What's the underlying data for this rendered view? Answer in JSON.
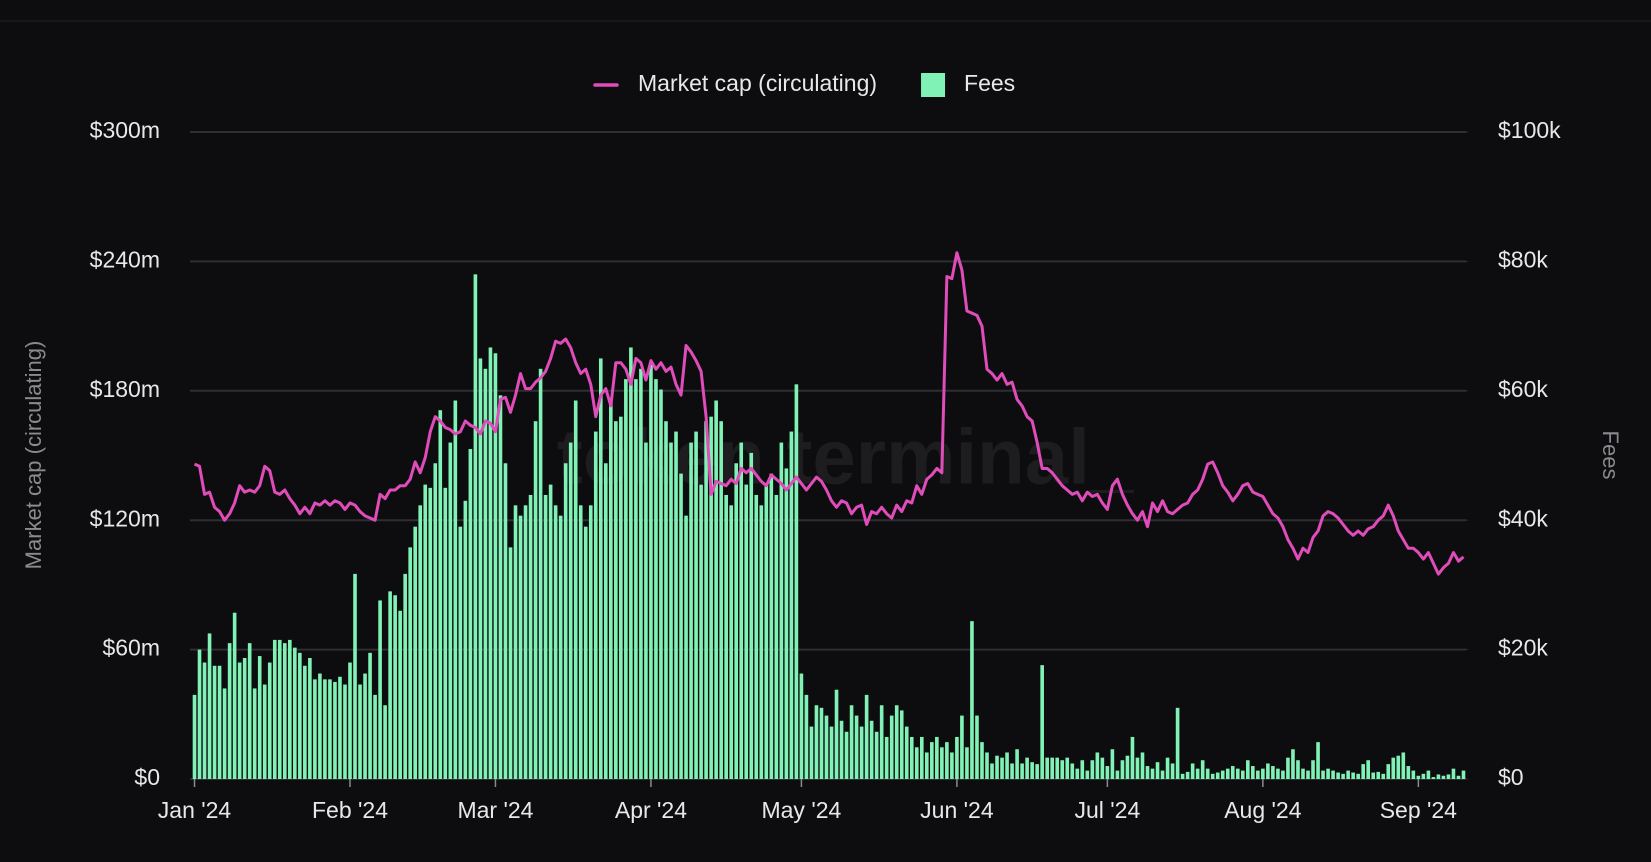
{
  "chart_data": {
    "type": "combo",
    "watermark": "token terminal_",
    "ylabel": "Market cap (circulating)",
    "y2label": "Fees",
    "grid": true,
    "ylim": [
      0,
      300
    ],
    "yticks": [
      {
        "value": 0,
        "label": "$0"
      },
      {
        "value": 60,
        "label": "$60m"
      },
      {
        "value": 120,
        "label": "$120m"
      },
      {
        "value": 180,
        "label": "$180m"
      },
      {
        "value": 240,
        "label": "$240m"
      },
      {
        "value": 300,
        "label": "$300m"
      }
    ],
    "y2lim": [
      0,
      100
    ],
    "y2ticks": [
      {
        "value": 0,
        "label": "$0"
      },
      {
        "value": 20,
        "label": "$20k"
      },
      {
        "value": 40,
        "label": "$40k"
      },
      {
        "value": 60,
        "label": "$60k"
      },
      {
        "value": 80,
        "label": "$80k"
      },
      {
        "value": 100,
        "label": "$100k"
      }
    ],
    "categories": [
      "Jan '24",
      null,
      null,
      null,
      null,
      null,
      null,
      null,
      null,
      null,
      null,
      null,
      null,
      null,
      null,
      null,
      null,
      null,
      null,
      null,
      null,
      null,
      null,
      null,
      null,
      null,
      null,
      null,
      null,
      null,
      null,
      "Feb '24",
      null,
      null,
      null,
      null,
      null,
      null,
      null,
      null,
      null,
      null,
      null,
      null,
      null,
      null,
      null,
      null,
      null,
      null,
      null,
      null,
      null,
      null,
      null,
      null,
      null,
      null,
      null,
      null,
      "Mar '24",
      null,
      null,
      null,
      null,
      null,
      null,
      null,
      null,
      null,
      null,
      null,
      null,
      null,
      null,
      null,
      null,
      null,
      null,
      null,
      null,
      null,
      null,
      null,
      null,
      null,
      null,
      null,
      null,
      null,
      null,
      "Apr '24",
      null,
      null,
      null,
      null,
      null,
      null,
      null,
      null,
      null,
      null,
      null,
      null,
      null,
      null,
      null,
      null,
      null,
      null,
      null,
      null,
      null,
      null,
      null,
      null,
      null,
      null,
      null,
      null,
      null,
      "May '24",
      null,
      null,
      null,
      null,
      null,
      null,
      null,
      null,
      null,
      null,
      null,
      null,
      null,
      null,
      null,
      null,
      null,
      null,
      null,
      null,
      null,
      null,
      null,
      null,
      null,
      null,
      null,
      null,
      null,
      null,
      "Jun '24",
      null,
      null,
      null,
      null,
      null,
      null,
      null,
      null,
      null,
      null,
      null,
      null,
      null,
      null,
      null,
      null,
      null,
      null,
      null,
      null,
      null,
      null,
      null,
      null,
      null,
      null,
      null,
      null,
      null,
      "Jul '24",
      null,
      null,
      null,
      null,
      null,
      null,
      null,
      null,
      null,
      null,
      null,
      null,
      null,
      null,
      null,
      null,
      null,
      null,
      null,
      null,
      null,
      null,
      null,
      null,
      null,
      null,
      null,
      null,
      null,
      null,
      "Aug '24",
      null,
      null,
      null,
      null,
      null,
      null,
      null,
      null,
      null,
      null,
      null,
      null,
      null,
      null,
      null,
      null,
      null,
      null,
      null,
      null,
      null,
      null,
      null,
      null,
      null,
      null,
      null,
      null,
      null,
      null,
      "Sep '24",
      null,
      null,
      null,
      null,
      null,
      null,
      null,
      null,
      null
    ],
    "series": [
      {
        "name": "Market cap (circulating)",
        "type": "line",
        "color": "#e04cb9",
        "axis": "y",
        "values": [
          146,
          145,
          132,
          133,
          126,
          124,
          120,
          123,
          128,
          136,
          133,
          134,
          133,
          136,
          145,
          143,
          133,
          132,
          134,
          130,
          127,
          123,
          126,
          123,
          128,
          127,
          129,
          127,
          129,
          128,
          125,
          128,
          127,
          124,
          122,
          121,
          120,
          132,
          130,
          134,
          134,
          136,
          136,
          139,
          147,
          142,
          149,
          161,
          168,
          166,
          163,
          162,
          160,
          161,
          166,
          164,
          163,
          160,
          166,
          165,
          161,
          176,
          177,
          170,
          178,
          188,
          181,
          181,
          184,
          186,
          189,
          195,
          203,
          202,
          204,
          200,
          193,
          188,
          190,
          183,
          168,
          178,
          181,
          173,
          193,
          193,
          190,
          183,
          195,
          193,
          185,
          194,
          190,
          193,
          189,
          191,
          183,
          178,
          201,
          198,
          194,
          189,
          168,
          132,
          138,
          137,
          136,
          139,
          137,
          144,
          142,
          144,
          141,
          138,
          136,
          141,
          139,
          137,
          134,
          137,
          140,
          137,
          134,
          137,
          140,
          138,
          134,
          129,
          126,
          129,
          128,
          123,
          126,
          127,
          118,
          124,
          123,
          126,
          123,
          121,
          127,
          124,
          129,
          128,
          136,
          132,
          139,
          141,
          144,
          142,
          233,
          232,
          244,
          236,
          217,
          216,
          215,
          210,
          190,
          188,
          185,
          188,
          183,
          184,
          176,
          173,
          168,
          166,
          156,
          144,
          144,
          142,
          139,
          136,
          134,
          132,
          133,
          129,
          133,
          131,
          132,
          128,
          125,
          136,
          139,
          132,
          127,
          123,
          120,
          124,
          117,
          128,
          124,
          129,
          124,
          123,
          125,
          127,
          128,
          132,
          134,
          139,
          146,
          147,
          142,
          136,
          133,
          129,
          132,
          136,
          137,
          133,
          132,
          131,
          127,
          123,
          121,
          117,
          111,
          107,
          102,
          107,
          105,
          112,
          115,
          122,
          124,
          123,
          121,
          118,
          115,
          113,
          115,
          113,
          116,
          117,
          120,
          122,
          127,
          122,
          115,
          111,
          107,
          107,
          105,
          102,
          105,
          100,
          95,
          98,
          100,
          105,
          101,
          103
        ]
      },
      {
        "name": "Fees",
        "type": "bar",
        "color": "#80f2b6",
        "axis": "y2",
        "values": [
          13,
          20,
          18,
          22.5,
          17.5,
          17.5,
          14,
          21,
          25.7,
          18,
          18.7,
          21,
          14,
          19,
          14.6,
          18,
          21.5,
          21.5,
          21,
          21.5,
          20.3,
          19.5,
          17.5,
          18.7,
          15.4,
          16.3,
          15.4,
          15.4,
          15,
          15.8,
          14.6,
          18,
          31.7,
          14.6,
          16.3,
          19.5,
          13,
          27.6,
          11.4,
          29,
          28.4,
          26,
          31.7,
          35.8,
          39,
          42.3,
          45.5,
          45,
          48.8,
          57,
          45,
          52,
          58.5,
          39,
          43,
          51,
          78,
          65,
          63.4,
          66.7,
          65.8,
          59.3,
          48.8,
          35.8,
          42.3,
          40.7,
          42.3,
          43.9,
          55.3,
          63.4,
          43.9,
          45.5,
          42.3,
          40.7,
          48.8,
          52,
          58.5,
          42.3,
          39,
          42.3,
          53.7,
          65,
          48.8,
          58.5,
          55.3,
          56,
          61.8,
          66.7,
          61.8,
          63.4,
          52,
          64.2,
          61.8,
          60.2,
          55.3,
          52,
          53.7,
          47.2,
          40.7,
          52,
          53.7,
          45.5,
          55.3,
          56,
          58.5,
          55.3,
          43.9,
          42.3,
          48.8,
          52,
          45.5,
          50.4,
          43.9,
          42.3,
          45.5,
          47.2,
          43.9,
          52,
          48,
          53.7,
          61,
          16.3,
          13,
          8.1,
          11.4,
          11,
          9.8,
          8.1,
          13.8,
          9,
          7.3,
          11.4,
          9.8,
          8.1,
          13,
          9,
          7.3,
          11.4,
          6.5,
          9.8,
          11.4,
          10.6,
          8.1,
          6.5,
          4.9,
          6.5,
          4.1,
          5.7,
          6.5,
          4.9,
          5.7,
          4.1,
          6.5,
          9.8,
          4.9,
          24.4,
          9.8,
          5.7,
          4.1,
          2.4,
          3.6,
          3.3,
          4.1,
          2.4,
          4.6,
          2.4,
          3.3,
          2.6,
          2.3,
          17.6,
          3.3,
          3.3,
          3.3,
          2.9,
          3.3,
          2.4,
          1.6,
          2.9,
          1.3,
          2.9,
          4.1,
          3.3,
          2,
          4.6,
          1.3,
          2.9,
          3.6,
          6.5,
          3.3,
          4.1,
          2,
          1.6,
          2.6,
          1.3,
          3.3,
          2.4,
          11,
          0.8,
          1.1,
          2.4,
          1.6,
          2.9,
          1.6,
          0.8,
          1,
          1.3,
          1.6,
          2,
          1.6,
          1.3,
          2.9,
          2,
          1.3,
          1.6,
          2.4,
          2,
          1.6,
          1.3,
          3.3,
          4.6,
          2.9,
          1.6,
          1.3,
          2.9,
          5.7,
          1.3,
          1.6,
          1.3,
          1,
          0.8,
          1.3,
          1,
          0.8,
          2.3,
          2.9,
          1,
          1.1,
          0.8,
          2.3,
          3.3,
          3.6,
          4.1,
          2,
          1.3,
          0.5,
          0.8,
          1.3,
          0.3,
          0.7,
          0.5,
          0.7,
          1.6,
          0.5,
          1.3
        ]
      }
    ]
  }
}
